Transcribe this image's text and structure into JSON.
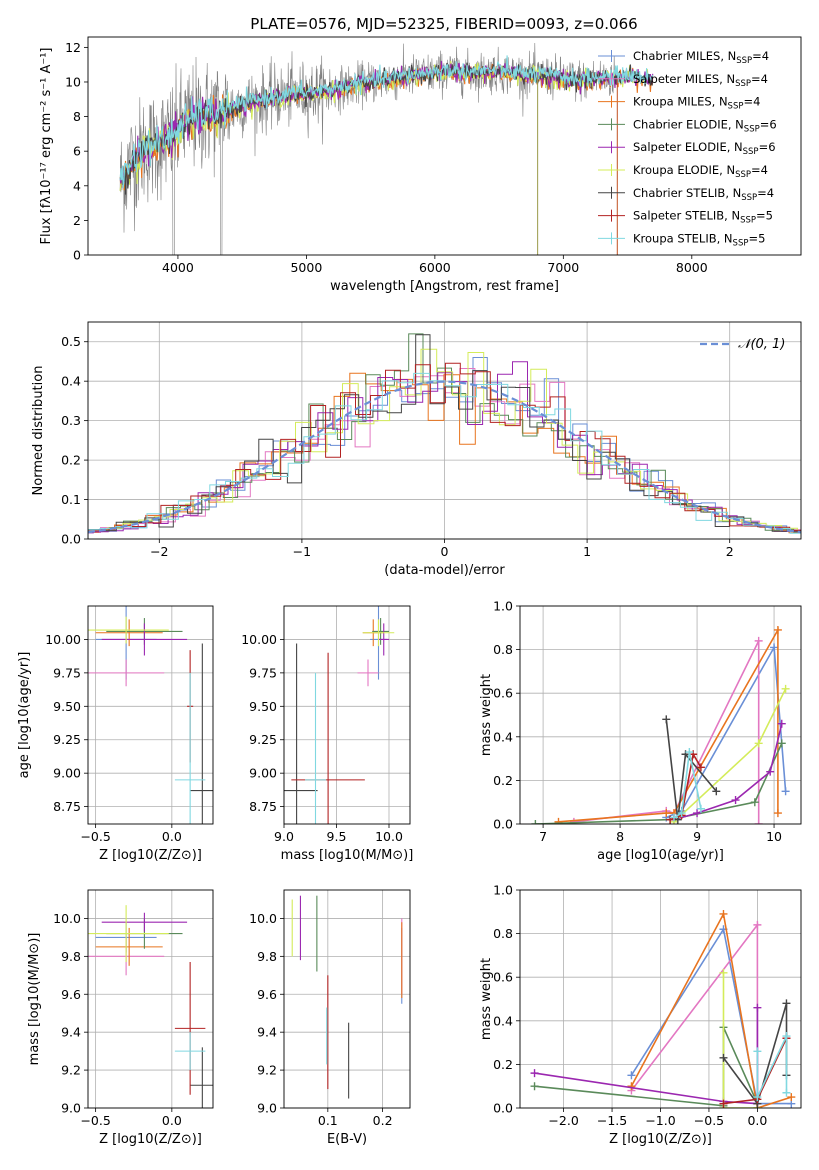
{
  "figure_title": "PLATE=0576, MJD=52325, FIBERID=0093, z=0.066",
  "colors": {
    "chabrier_miles": "#6a8fd6",
    "salpeter_miles": "#e377c2",
    "kroupa_miles": "#e8741f",
    "chabrier_elodie": "#5a8a5a",
    "salpeter_elodie": "#9b27b0",
    "kroupa_elodie": "#d4ec5a",
    "chabrier_stelib": "#444444",
    "salpeter_stelib": "#b22222",
    "kroupa_stelib": "#80d8e0",
    "data": "#808080",
    "normal": "#6a8fd6"
  },
  "chart_data": [
    {
      "id": "spectrum",
      "type": "line",
      "title": "PLATE=0576, MJD=52325, FIBERID=0093, z=0.066",
      "xlabel": "wavelength [Angstrom, rest frame]",
      "ylabel": "Flux [fλ10⁻¹⁷ erg cm⁻² s⁻¹ A⁻¹]",
      "xlim": [
        3300,
        8850
      ],
      "ylim": [
        0,
        12.6
      ],
      "xticks": [
        4000,
        5000,
        6000,
        7000,
        8000
      ],
      "yticks": [
        0,
        2,
        4,
        6,
        8,
        10,
        12
      ],
      "legend_position": "right",
      "legend": [
        {
          "key": "chabrier_miles",
          "label": "Chabrier MILES, N",
          "sub": "SSP",
          "tail": "=4"
        },
        {
          "key": "salpeter_miles",
          "label": "Salpeter MILES, N",
          "sub": "SSP",
          "tail": "=4"
        },
        {
          "key": "kroupa_miles",
          "label": "Kroupa MILES, N",
          "sub": "SSP",
          "tail": "=4"
        },
        {
          "key": "chabrier_elodie",
          "label": "Chabrier ELODIE, N",
          "sub": "SSP",
          "tail": "=6"
        },
        {
          "key": "salpeter_elodie",
          "label": "Salpeter ELODIE, N",
          "sub": "SSP",
          "tail": "=6"
        },
        {
          "key": "kroupa_elodie",
          "label": "Kroupa ELODIE, N",
          "sub": "SSP",
          "tail": "=4"
        },
        {
          "key": "chabrier_stelib",
          "label": "Chabrier STELIB, N",
          "sub": "SSP",
          "tail": "=4"
        },
        {
          "key": "salpeter_stelib",
          "label": "Salpeter STELIB, N",
          "sub": "SSP",
          "tail": "=5"
        },
        {
          "key": "kroupa_stelib",
          "label": "Kroupa STELIB, N",
          "sub": "SSP",
          "tail": "=5"
        }
      ],
      "continuum": {
        "x": [
          3550,
          3650,
          3750,
          3850,
          3950,
          4050,
          4150,
          4250,
          4350,
          4500,
          4700,
          4900,
          5100,
          5300,
          5500,
          5700,
          5900,
          6100,
          6300,
          6500,
          6700,
          6900,
          7100,
          7300,
          7500,
          7700
        ],
        "y": [
          4.2,
          5.5,
          6.2,
          6.4,
          6.8,
          7.6,
          8.0,
          8.1,
          8.3,
          8.7,
          9.0,
          9.3,
          9.4,
          9.7,
          10.0,
          10.2,
          10.4,
          10.6,
          10.5,
          10.6,
          10.4,
          10.3,
          10.1,
          10.2,
          10.3,
          10.1
        ]
      }
    },
    {
      "id": "residuals",
      "type": "line",
      "xlabel": "(data-model)/error",
      "ylabel": "Normed distribution",
      "xlim": [
        -2.5,
        2.5
      ],
      "ylim": [
        0,
        0.55
      ],
      "xticks": [
        -2,
        -1,
        0,
        1,
        2
      ],
      "yticks": [
        0.0,
        0.1,
        0.2,
        0.3,
        0.4,
        0.5
      ],
      "grid": true,
      "legend_position": "top-right",
      "legend_label": "𝒩(0, 1)"
    },
    {
      "id": "age_vs_Z",
      "type": "scatter",
      "xlabel": "Z [log10(Z/Z⊙)]",
      "ylabel": "age  [log10(age/yr)]",
      "xlim": [
        -0.55,
        0.27
      ],
      "ylim": [
        8.62,
        10.25
      ],
      "xticks": [
        -0.5,
        0.0
      ],
      "yticks": [
        8.75,
        9.0,
        9.25,
        9.5,
        9.75,
        10.0
      ],
      "grid": true,
      "points": [
        {
          "key": "chabrier_miles",
          "x": -0.3,
          "y": 10.0,
          "xerr": 0.2,
          "yerr": 0.3
        },
        {
          "key": "salpeter_miles",
          "x": -0.3,
          "y": 9.75,
          "xerr": 0.25,
          "yerr": 0.1
        },
        {
          "key": "kroupa_miles",
          "x": -0.28,
          "y": 10.05,
          "xerr": 0.22,
          "yerr": 0.1
        },
        {
          "key": "chabrier_elodie",
          "x": -0.18,
          "y": 10.06,
          "xerr": 0.25,
          "yerr": 0.1
        },
        {
          "key": "salpeter_elodie",
          "x": -0.18,
          "y": 10.0,
          "xerr": 0.28,
          "yerr": 0.12
        },
        {
          "key": "kroupa_elodie",
          "x": -0.3,
          "y": 10.07,
          "xerr": 0.28,
          "yerr": 0.1
        },
        {
          "key": "chabrier_stelib",
          "x": 0.2,
          "y": 8.87,
          "xerr": 0.08,
          "yerr": 1.1
        },
        {
          "key": "salpeter_stelib",
          "x": 0.12,
          "y": 9.5,
          "xerr": 0.02,
          "yerr": 0.42
        },
        {
          "key": "kroupa_stelib",
          "x": 0.12,
          "y": 8.95,
          "xerr": 0.1,
          "yerr": 0.8
        }
      ]
    },
    {
      "id": "age_vs_mass",
      "type": "scatter",
      "xlabel": "mass [log10(M/M⊙)]",
      "ylabel": "",
      "xlim": [
        9.0,
        10.2
      ],
      "ylim": [
        8.62,
        10.25
      ],
      "xticks": [
        9.0,
        9.5,
        10.0
      ],
      "yticks": [
        8.75,
        9.0,
        9.25,
        9.5,
        9.75,
        10.0
      ],
      "grid": true,
      "points": [
        {
          "key": "chabrier_miles",
          "x": 9.9,
          "y": 10.0,
          "xerr": 0.08,
          "yerr": 0.3
        },
        {
          "key": "salpeter_miles",
          "x": 9.8,
          "y": 9.75,
          "xerr": 0.1,
          "yerr": 0.1
        },
        {
          "key": "kroupa_miles",
          "x": 9.85,
          "y": 10.05,
          "xerr": 0.1,
          "yerr": 0.1
        },
        {
          "key": "chabrier_elodie",
          "x": 9.92,
          "y": 10.06,
          "xerr": 0.08,
          "yerr": 0.1
        },
        {
          "key": "salpeter_elodie",
          "x": 9.95,
          "y": 10.0,
          "xerr": 0.05,
          "yerr": 0.12
        },
        {
          "key": "kroupa_elodie",
          "x": 9.9,
          "y": 10.05,
          "xerr": 0.15,
          "yerr": 0.1
        },
        {
          "key": "chabrier_stelib",
          "x": 9.12,
          "y": 8.87,
          "xerr": 0.2,
          "yerr": 1.1
        },
        {
          "key": "salpeter_stelib",
          "x": 9.42,
          "y": 8.95,
          "xerr": 0.35,
          "yerr": 0.95
        },
        {
          "key": "kroupa_stelib",
          "x": 9.3,
          "y": 8.95,
          "xerr": 0.1,
          "yerr": 0.8
        }
      ]
    },
    {
      "id": "massweight_vs_age",
      "type": "line",
      "xlabel": "age  [log10(age/yr)]",
      "ylabel": "mass weight",
      "xlim": [
        6.7,
        10.35
      ],
      "ylim": [
        0,
        1.0
      ],
      "xticks": [
        7,
        8,
        9,
        10
      ],
      "yticks": [
        0.0,
        0.2,
        0.4,
        0.6,
        0.8,
        1.0
      ],
      "grid": true,
      "series": [
        {
          "key": "chabrier_miles",
          "x": [
            8.6,
            8.8,
            10.0,
            10.15
          ],
          "y": [
            0.03,
            0.06,
            0.81,
            0.15
          ]
        },
        {
          "key": "salpeter_miles",
          "x": [
            7.4,
            8.6,
            8.7,
            9.8,
            9.8
          ],
          "y": [
            0.01,
            0.06,
            0.05,
            0.84,
            0.0
          ]
        },
        {
          "key": "kroupa_miles",
          "x": [
            7.2,
            8.6,
            8.7,
            10.05,
            10.05
          ],
          "y": [
            0.01,
            0.05,
            0.05,
            0.89,
            0.05
          ]
        },
        {
          "key": "chabrier_elodie",
          "x": [
            6.9,
            8.65,
            9.75,
            10.1
          ],
          "y": [
            0.0,
            0.02,
            0.1,
            0.37
          ]
        },
        {
          "key": "salpeter_elodie",
          "x": [
            8.7,
            9.0,
            9.5,
            9.95,
            10.1
          ],
          "y": [
            0.02,
            0.05,
            0.11,
            0.24,
            0.46
          ]
        },
        {
          "key": "kroupa_elodie",
          "x": [
            8.7,
            9.8,
            10.15
          ],
          "y": [
            0.01,
            0.37,
            0.62
          ]
        },
        {
          "key": "chabrier_stelib",
          "x": [
            8.6,
            8.75,
            8.85,
            9.25
          ],
          "y": [
            0.48,
            0.02,
            0.32,
            0.15
          ]
        },
        {
          "key": "salpeter_stelib",
          "x": [
            8.65,
            8.8,
            8.95,
            9.05
          ],
          "y": [
            0.02,
            0.04,
            0.32,
            0.26
          ]
        },
        {
          "key": "kroupa_stelib",
          "x": [
            8.7,
            8.8,
            8.9,
            9.05
          ],
          "y": [
            0.03,
            0.05,
            0.33,
            0.07
          ]
        }
      ]
    },
    {
      "id": "mass_vs_Z",
      "type": "scatter",
      "xlabel": "Z [log10(Z/Z⊙)]",
      "ylabel": "mass [log10(M/M⊙)]",
      "xlim": [
        -0.55,
        0.27
      ],
      "ylim": [
        9.0,
        10.15
      ],
      "xticks": [
        -0.5,
        0.0
      ],
      "yticks": [
        9.0,
        9.2,
        9.4,
        9.6,
        9.8,
        10.0
      ],
      "grid": true,
      "points": [
        {
          "key": "chabrier_miles",
          "x": -0.3,
          "y": 9.9,
          "xerr": 0.2,
          "yerr": 0.08
        },
        {
          "key": "salpeter_miles",
          "x": -0.3,
          "y": 9.8,
          "xerr": 0.25,
          "yerr": 0.1
        },
        {
          "key": "kroupa_miles",
          "x": -0.28,
          "y": 9.85,
          "xerr": 0.22,
          "yerr": 0.1
        },
        {
          "key": "chabrier_elodie",
          "x": -0.18,
          "y": 9.92,
          "xerr": 0.25,
          "yerr": 0.08
        },
        {
          "key": "salpeter_elodie",
          "x": -0.18,
          "y": 9.98,
          "xerr": 0.28,
          "yerr": 0.05
        },
        {
          "key": "kroupa_elodie",
          "x": -0.3,
          "y": 9.92,
          "xerr": 0.28,
          "yerr": 0.15
        },
        {
          "key": "chabrier_stelib",
          "x": 0.2,
          "y": 9.12,
          "xerr": 0.08,
          "yerr": 0.2
        },
        {
          "key": "salpeter_stelib",
          "x": 0.12,
          "y": 9.42,
          "xerr": 0.1,
          "yerr": 0.35
        },
        {
          "key": "kroupa_stelib",
          "x": 0.12,
          "y": 9.3,
          "xerr": 0.1,
          "yerr": 0.1
        }
      ]
    },
    {
      "id": "mass_vs_ebv",
      "type": "scatter",
      "xlabel": "E(B-V)",
      "ylabel": "",
      "xlim": [
        0.02,
        0.25
      ],
      "ylim": [
        9.0,
        10.15
      ],
      "xticks": [
        0.1,
        0.2
      ],
      "yticks": [
        9.0,
        9.2,
        9.4,
        9.6,
        9.8,
        10.0
      ],
      "grid": true,
      "points": [
        {
          "key": "chabrier_miles",
          "x": 0.235,
          "y": 9.75,
          "xerr": 0,
          "yerr": 0.2
        },
        {
          "key": "salpeter_miles",
          "x": 0.235,
          "y": 9.8,
          "xerr": 0,
          "yerr": 0.2
        },
        {
          "key": "kroupa_miles",
          "x": 0.235,
          "y": 9.78,
          "xerr": 0,
          "yerr": 0.2
        },
        {
          "key": "chabrier_elodie",
          "x": 0.08,
          "y": 9.92,
          "xerr": 0,
          "yerr": 0.2
        },
        {
          "key": "salpeter_elodie",
          "x": 0.05,
          "y": 9.95,
          "xerr": 0,
          "yerr": 0.17
        },
        {
          "key": "kroupa_elodie",
          "x": 0.035,
          "y": 9.95,
          "xerr": 0,
          "yerr": 0.15
        },
        {
          "key": "chabrier_stelib",
          "x": 0.138,
          "y": 9.25,
          "xerr": 0,
          "yerr": 0.2
        },
        {
          "key": "salpeter_stelib",
          "x": 0.1,
          "y": 9.4,
          "xerr": 0,
          "yerr": 0.3
        },
        {
          "key": "kroupa_stelib",
          "x": 0.098,
          "y": 9.38,
          "xerr": 0,
          "yerr": 0.15
        }
      ]
    },
    {
      "id": "massweight_vs_Z",
      "type": "line",
      "xlabel": "Z [log10(Z/Z⊙)]",
      "ylabel": "mass weight",
      "xlim": [
        -2.45,
        0.45
      ],
      "ylim": [
        0,
        1.0
      ],
      "xticks": [
        -2.0,
        -1.5,
        -1.0,
        -0.5,
        0.0
      ],
      "yticks": [
        0.0,
        0.2,
        0.4,
        0.6,
        0.8,
        1.0
      ],
      "grid": true,
      "series": [
        {
          "key": "chabrier_miles",
          "x": [
            -1.3,
            -0.35,
            0.0,
            0.35
          ],
          "y": [
            0.15,
            0.82,
            0.02,
            0.02
          ]
        },
        {
          "key": "salpeter_miles",
          "x": [
            -1.3,
            -0.0,
            0.0
          ],
          "y": [
            0.08,
            0.84,
            0.0
          ]
        },
        {
          "key": "kroupa_miles",
          "x": [
            -1.3,
            -0.35,
            0.0,
            0.35
          ],
          "y": [
            0.1,
            0.89,
            0.0,
            0.05
          ]
        },
        {
          "key": "chabrier_elodie",
          "x": [
            -2.3,
            -0.35,
            -0.35,
            0.0
          ],
          "y": [
            0.1,
            0.01,
            0.37,
            0.02
          ]
        },
        {
          "key": "salpeter_elodie",
          "x": [
            -2.3,
            -0.35,
            0.0,
            0.0
          ],
          "y": [
            0.16,
            0.03,
            0.02,
            0.46
          ]
        },
        {
          "key": "kroupa_elodie",
          "x": [
            -0.35,
            -0.35,
            0.0
          ],
          "y": [
            0.62,
            0.0,
            0.0
          ]
        },
        {
          "key": "chabrier_stelib",
          "x": [
            -0.35,
            0.0,
            0.3,
            0.3
          ],
          "y": [
            0.23,
            0.02,
            0.48,
            0.15
          ]
        },
        {
          "key": "salpeter_stelib",
          "x": [
            -0.35,
            0.0,
            0.3
          ],
          "y": [
            0.02,
            0.04,
            0.32
          ]
        },
        {
          "key": "kroupa_stelib",
          "x": [
            0.0,
            0.0,
            0.3,
            0.3
          ],
          "y": [
            0.26,
            0.05,
            0.33,
            0.07
          ]
        }
      ]
    }
  ]
}
